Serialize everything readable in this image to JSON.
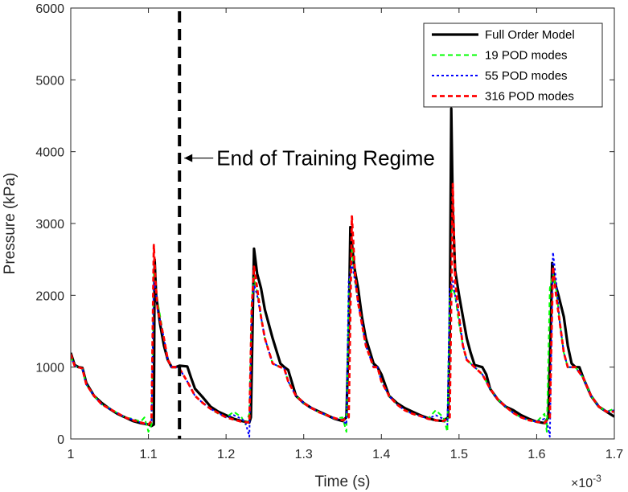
{
  "chart_data": {
    "type": "line",
    "title": "",
    "xlabel": "Time (s)",
    "ylabel": "Pressure (kPa)",
    "x_exponent_base": "×10",
    "x_exponent_power": "-3",
    "xlim": [
      1.0,
      1.7
    ],
    "ylim": [
      0,
      6000
    ],
    "xticks": [
      1.0,
      1.1,
      1.2,
      1.3,
      1.4,
      1.5,
      1.6,
      1.7
    ],
    "xtick_labels": [
      "1",
      "1.1",
      "1.2",
      "1.3",
      "1.4",
      "1.5",
      "1.6",
      "1.7"
    ],
    "yticks": [
      0,
      1000,
      2000,
      3000,
      4000,
      5000,
      6000
    ],
    "ytick_labels": [
      "0",
      "1000",
      "2000",
      "3000",
      "4000",
      "5000",
      "6000"
    ],
    "grid": false,
    "legend_position": "top-right",
    "annotation": {
      "text": "End of Training Regime",
      "vline_x": 1.14,
      "arrow_to": [
        1.14,
        4000
      ]
    },
    "series": [
      {
        "name": "Full Order Model",
        "color": "#000000",
        "style": "solid",
        "x": [
          1.0,
          1.005,
          1.01,
          1.015,
          1.02,
          1.03,
          1.04,
          1.05,
          1.06,
          1.07,
          1.08,
          1.09,
          1.1,
          1.104,
          1.107,
          1.108,
          1.11,
          1.115,
          1.12,
          1.125,
          1.13,
          1.135,
          1.14,
          1.15,
          1.155,
          1.16,
          1.17,
          1.18,
          1.19,
          1.2,
          1.21,
          1.22,
          1.23,
          1.232,
          1.234,
          1.236,
          1.24,
          1.245,
          1.25,
          1.26,
          1.27,
          1.275,
          1.28,
          1.29,
          1.3,
          1.31,
          1.32,
          1.33,
          1.34,
          1.35,
          1.355,
          1.358,
          1.36,
          1.365,
          1.37,
          1.375,
          1.38,
          1.39,
          1.395,
          1.4,
          1.41,
          1.42,
          1.43,
          1.44,
          1.45,
          1.46,
          1.47,
          1.48,
          1.486,
          1.488,
          1.49,
          1.492,
          1.495,
          1.5,
          1.505,
          1.51,
          1.515,
          1.52,
          1.53,
          1.535,
          1.54,
          1.55,
          1.56,
          1.57,
          1.58,
          1.59,
          1.6,
          1.61,
          1.615,
          1.618,
          1.62,
          1.623,
          1.628,
          1.635,
          1.64,
          1.645,
          1.65,
          1.655,
          1.66,
          1.67,
          1.68,
          1.69,
          1.7
        ],
        "y": [
          1200,
          1030,
          1000,
          990,
          780,
          600,
          500,
          420,
          350,
          300,
          250,
          220,
          200,
          180,
          200,
          2500,
          2000,
          1600,
          1300,
          1100,
          1000,
          1000,
          1020,
          1010,
          850,
          700,
          580,
          450,
          380,
          330,
          280,
          250,
          230,
          300,
          1500,
          2650,
          2300,
          2100,
          1800,
          1400,
          1050,
          1000,
          960,
          600,
          500,
          430,
          380,
          330,
          280,
          250,
          300,
          1500,
          2950,
          2400,
          2100,
          1700,
          1400,
          1050,
          1000,
          900,
          600,
          500,
          430,
          380,
          330,
          290,
          260,
          250,
          300,
          1500,
          4600,
          3200,
          2350,
          2000,
          1700,
          1400,
          1200,
          1030,
          1000,
          900,
          700,
          550,
          450,
          400,
          330,
          280,
          240,
          220,
          300,
          1500,
          2450,
          2200,
          2000,
          1700,
          1300,
          1050,
          1000,
          1000,
          850,
          600,
          450,
          380,
          310
        ]
      },
      {
        "name": "19 POD modes",
        "color": "#00ff00",
        "style": "dashed",
        "x": [
          1.0,
          1.005,
          1.01,
          1.015,
          1.02,
          1.03,
          1.04,
          1.05,
          1.06,
          1.07,
          1.08,
          1.09,
          1.095,
          1.1,
          1.104,
          1.107,
          1.109,
          1.112,
          1.12,
          1.125,
          1.13,
          1.135,
          1.14,
          1.15,
          1.16,
          1.17,
          1.18,
          1.19,
          1.2,
          1.21,
          1.22,
          1.225,
          1.23,
          1.233,
          1.236,
          1.24,
          1.245,
          1.25,
          1.26,
          1.27,
          1.275,
          1.28,
          1.29,
          1.3,
          1.31,
          1.32,
          1.33,
          1.34,
          1.35,
          1.355,
          1.358,
          1.362,
          1.366,
          1.37,
          1.38,
          1.39,
          1.395,
          1.4,
          1.41,
          1.42,
          1.43,
          1.44,
          1.45,
          1.46,
          1.47,
          1.48,
          1.485,
          1.488,
          1.492,
          1.495,
          1.5,
          1.505,
          1.51,
          1.52,
          1.53,
          1.54,
          1.55,
          1.56,
          1.57,
          1.58,
          1.59,
          1.6,
          1.61,
          1.613,
          1.617,
          1.621,
          1.625,
          1.63,
          1.635,
          1.64,
          1.65,
          1.66,
          1.67,
          1.68,
          1.69,
          1.7
        ],
        "y": [
          1150,
          1020,
          1000,
          980,
          760,
          600,
          480,
          430,
          360,
          300,
          280,
          240,
          300,
          100,
          200,
          2300,
          2200,
          1900,
          1400,
          1100,
          1000,
          1000,
          980,
          800,
          600,
          500,
          420,
          350,
          300,
          380,
          300,
          200,
          350,
          1900,
          2250,
          2050,
          1700,
          1400,
          1050,
          1000,
          980,
          800,
          600,
          500,
          430,
          370,
          330,
          280,
          300,
          100,
          2000,
          2650,
          2200,
          1900,
          1300,
          1000,
          1000,
          800,
          600,
          480,
          400,
          350,
          320,
          280,
          400,
          300,
          100,
          2000,
          2100,
          2000,
          1600,
          1300,
          1100,
          1000,
          900,
          700,
          550,
          450,
          360,
          300,
          260,
          240,
          350,
          100,
          2100,
          2300,
          2100,
          1600,
          1200,
          1000,
          1000,
          850,
          600,
          450,
          380,
          420
        ]
      },
      {
        "name": "55 POD modes",
        "color": "#0000ff",
        "style": "dotted",
        "x": [
          1.0,
          1.005,
          1.01,
          1.015,
          1.02,
          1.03,
          1.04,
          1.05,
          1.06,
          1.07,
          1.08,
          1.09,
          1.1,
          1.104,
          1.107,
          1.109,
          1.112,
          1.12,
          1.125,
          1.13,
          1.135,
          1.14,
          1.15,
          1.16,
          1.17,
          1.18,
          1.19,
          1.2,
          1.21,
          1.22,
          1.225,
          1.23,
          1.233,
          1.236,
          1.24,
          1.245,
          1.25,
          1.26,
          1.27,
          1.275,
          1.28,
          1.29,
          1.3,
          1.31,
          1.32,
          1.33,
          1.34,
          1.35,
          1.355,
          1.358,
          1.362,
          1.366,
          1.37,
          1.38,
          1.39,
          1.395,
          1.4,
          1.41,
          1.42,
          1.43,
          1.44,
          1.45,
          1.46,
          1.47,
          1.48,
          1.485,
          1.488,
          1.492,
          1.495,
          1.5,
          1.505,
          1.51,
          1.52,
          1.53,
          1.54,
          1.55,
          1.56,
          1.57,
          1.58,
          1.59,
          1.6,
          1.61,
          1.614,
          1.617,
          1.621,
          1.625,
          1.63,
          1.635,
          1.64,
          1.65,
          1.66,
          1.67,
          1.68,
          1.69,
          1.7
        ],
        "y": [
          1150,
          1020,
          1000,
          980,
          760,
          600,
          480,
          420,
          360,
          300,
          270,
          230,
          200,
          250,
          2200,
          2100,
          1800,
          1400,
          1100,
          1000,
          1000,
          980,
          800,
          600,
          500,
          420,
          360,
          300,
          330,
          280,
          230,
          30,
          1800,
          2150,
          2000,
          1700,
          1400,
          1050,
          1000,
          980,
          800,
          600,
          500,
          430,
          370,
          330,
          280,
          270,
          200,
          2200,
          2450,
          2200,
          1900,
          1300,
          1000,
          1000,
          800,
          600,
          480,
          400,
          350,
          320,
          280,
          330,
          280,
          200,
          2100,
          2200,
          2000,
          1700,
          1300,
          1100,
          1000,
          900,
          700,
          550,
          450,
          360,
          300,
          260,
          240,
          280,
          200,
          30,
          2600,
          2200,
          1600,
          1200,
          1000,
          1000,
          850,
          600,
          450,
          380,
          400
        ]
      },
      {
        "name": "316 POD modes",
        "color": "#ff0000",
        "style": "dashed",
        "x": [
          1.0,
          1.005,
          1.01,
          1.015,
          1.02,
          1.03,
          1.04,
          1.05,
          1.06,
          1.07,
          1.08,
          1.09,
          1.1,
          1.104,
          1.107,
          1.109,
          1.112,
          1.12,
          1.125,
          1.13,
          1.135,
          1.14,
          1.15,
          1.16,
          1.17,
          1.18,
          1.19,
          1.2,
          1.21,
          1.22,
          1.23,
          1.233,
          1.236,
          1.24,
          1.245,
          1.25,
          1.26,
          1.27,
          1.275,
          1.28,
          1.29,
          1.3,
          1.31,
          1.32,
          1.33,
          1.34,
          1.35,
          1.358,
          1.362,
          1.366,
          1.37,
          1.38,
          1.39,
          1.395,
          1.4,
          1.41,
          1.42,
          1.43,
          1.44,
          1.45,
          1.46,
          1.47,
          1.48,
          1.488,
          1.492,
          1.495,
          1.5,
          1.505,
          1.51,
          1.52,
          1.53,
          1.54,
          1.55,
          1.56,
          1.57,
          1.58,
          1.59,
          1.6,
          1.61,
          1.617,
          1.621,
          1.625,
          1.63,
          1.635,
          1.64,
          1.65,
          1.66,
          1.67,
          1.68,
          1.69,
          1.7
        ],
        "y": [
          1180,
          1020,
          1000,
          980,
          760,
          600,
          480,
          420,
          360,
          300,
          260,
          230,
          200,
          250,
          2700,
          2200,
          1800,
          1400,
          1100,
          1000,
          1000,
          980,
          800,
          600,
          500,
          420,
          360,
          300,
          270,
          240,
          230,
          1800,
          2400,
          2100,
          1700,
          1400,
          1050,
          1000,
          980,
          800,
          600,
          500,
          430,
          370,
          330,
          290,
          260,
          300,
          3100,
          2300,
          1900,
          1300,
          1000,
          1000,
          800,
          600,
          480,
          400,
          350,
          320,
          280,
          260,
          250,
          300,
          3550,
          2200,
          1700,
          1300,
          1100,
          1000,
          900,
          700,
          550,
          450,
          360,
          300,
          260,
          240,
          220,
          300,
          2400,
          2000,
          1600,
          1200,
          1000,
          1000,
          850,
          600,
          450,
          380,
          380
        ]
      }
    ]
  }
}
